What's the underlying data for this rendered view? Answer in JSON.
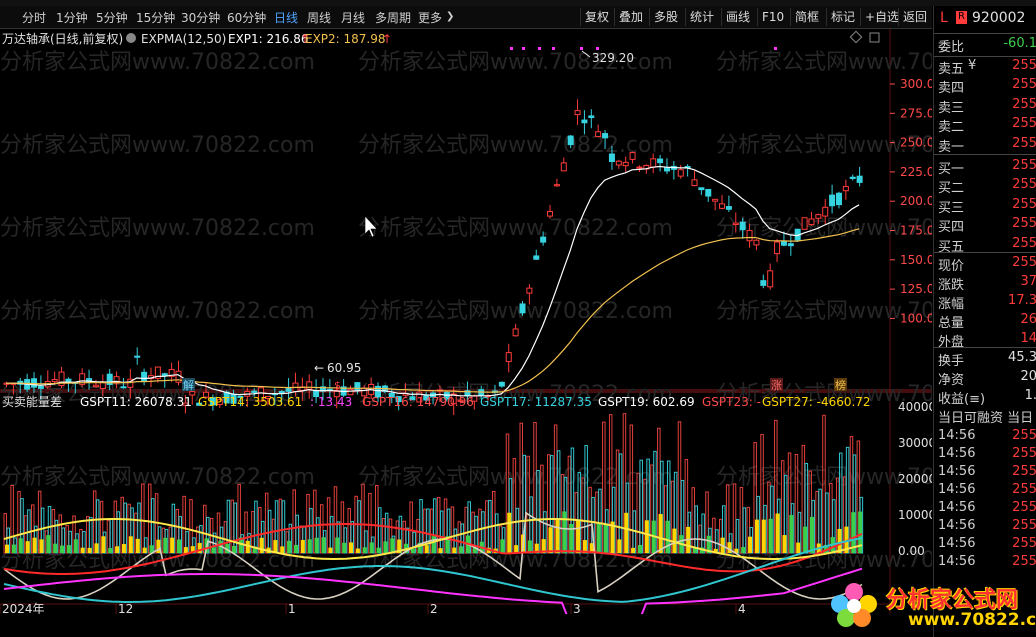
{
  "toolbar": {
    "periods": [
      "分时",
      "1分钟",
      "5分钟",
      "15分钟",
      "30分钟",
      "60分钟",
      "日线",
      "周线",
      "月线",
      "多周期",
      "更多"
    ],
    "active_period": "日线",
    "more_arrow": "❯",
    "buttons": [
      "复权",
      "叠加",
      "多股",
      "统计",
      "画线",
      "F10",
      "简框",
      "标记",
      "+自选",
      "返回"
    ]
  },
  "chart": {
    "title": "万达轴承(日线,前复权)",
    "expma_label": "EXPMA(12,50)",
    "exp1": "EXP1: 216.86",
    "exp2": "EXP2: 187.98",
    "high_label": "329.20",
    "low_label": "60.95",
    "y_ticks": [
      "300.0",
      "275.0",
      "250.0",
      "225.0",
      "200.0",
      "175.0",
      "150.0",
      "125.0",
      "100.0"
    ],
    "markers": [
      "解",
      "$",
      "涨",
      "榜"
    ],
    "x_labels": [
      "2024年",
      "12",
      "1",
      "2",
      "3",
      "4"
    ]
  },
  "indicator": {
    "name": "买卖能量差",
    "values": [
      {
        "text": "GSPT11: 26078.31",
        "color": "#ffffff"
      },
      {
        "text": "GSPT14: 3503.61",
        "color": "#ffd400"
      },
      {
        "text": ": 13.43",
        "color": "#ff44ff"
      },
      {
        "text": "GSPT16: 14790.96",
        "color": "#ff4a4a"
      },
      {
        "text": "GSPT17: 11287.35",
        "color": "#36d3e0"
      },
      {
        "text": "GSPT19: 602.69",
        "color": "#ffffff"
      },
      {
        "text": "GSPT23: -",
        "color": "#ff4a4a"
      },
      {
        "text": "GSPT27: -4660.72",
        "color": "#ffd400"
      }
    ],
    "y_ticks": [
      "40000",
      "30000",
      "20000",
      "10000",
      "0.00"
    ]
  },
  "right_panel": {
    "code_letter": "L",
    "code_badge": "R",
    "code": "920002",
    "weibi_label": "委比",
    "weibi_value": "-60.1",
    "order_book": [
      {
        "label": "卖五",
        "extra": "¥",
        "value": "255"
      },
      {
        "label": "卖四",
        "value": "255"
      },
      {
        "label": "卖三",
        "value": "255"
      },
      {
        "label": "卖二",
        "value": "255"
      },
      {
        "label": "卖一",
        "value": "255"
      },
      {
        "label": "买一",
        "value": "255"
      },
      {
        "label": "买二",
        "value": "255"
      },
      {
        "label": "买三",
        "value": "255"
      },
      {
        "label": "买四",
        "value": "255"
      },
      {
        "label": "买五",
        "value": "255"
      }
    ],
    "quote": [
      {
        "label": "现价",
        "value": "255"
      },
      {
        "label": "涨跌",
        "value": "37"
      },
      {
        "label": "涨幅",
        "value": "17.3"
      },
      {
        "label": "总量",
        "value": "26"
      },
      {
        "label": "外盘",
        "value": "14"
      }
    ],
    "stats": [
      {
        "label": "换手",
        "value": "45.3"
      },
      {
        "label": "净资",
        "value": "20"
      },
      {
        "label": "收益(≡)",
        "value": "1."
      }
    ],
    "ticks_header": "当日可融资 当日",
    "ticks": [
      {
        "time": "14:56",
        "value": "255"
      },
      {
        "time": "14:56",
        "value": "255"
      },
      {
        "time": "14:56",
        "value": "255"
      },
      {
        "time": "14:56",
        "value": "255"
      },
      {
        "time": "14:56",
        "value": "255"
      },
      {
        "time": "14:56",
        "value": "255"
      },
      {
        "time": "14:56",
        "value": "255"
      },
      {
        "time": "14:56",
        "value": "255"
      }
    ]
  },
  "watermark": "分析家公式网www.70822.com",
  "logo": {
    "text": "分析家公式网",
    "url": "www.70822.com"
  }
}
